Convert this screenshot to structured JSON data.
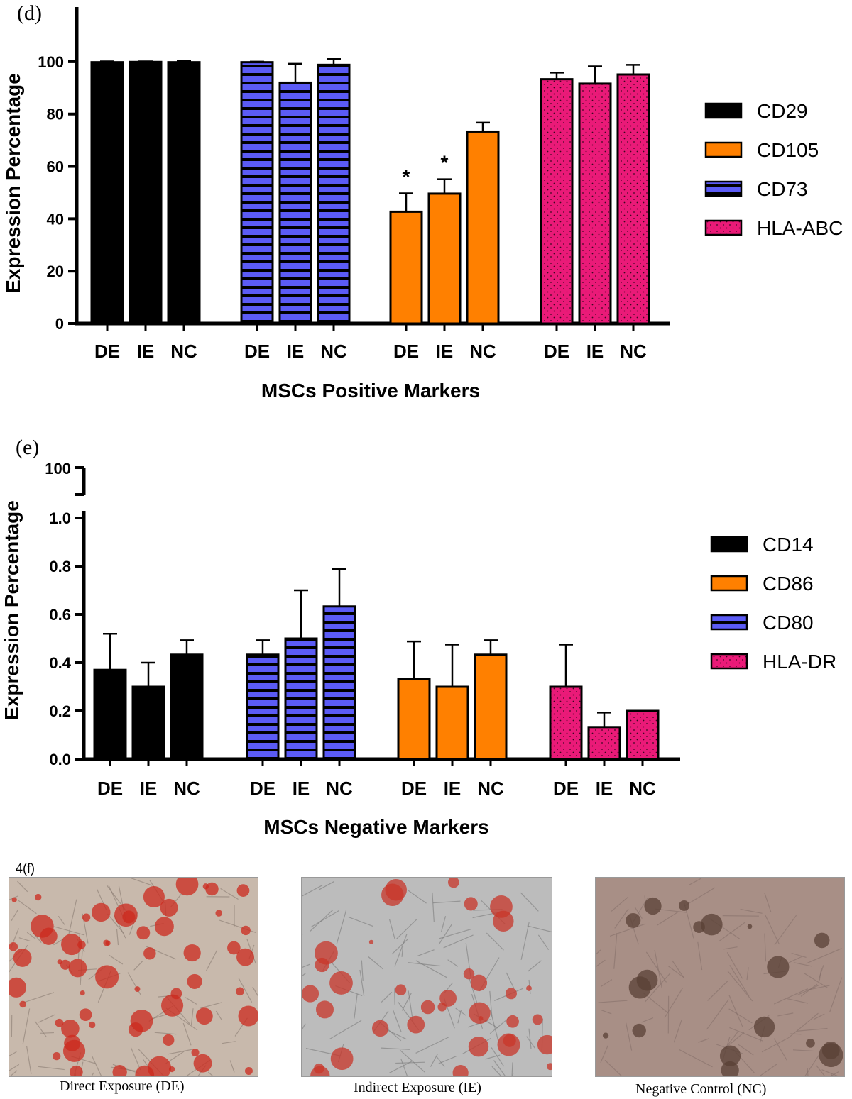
{
  "panels": {
    "d_label": "(d)",
    "e_label": "(e)",
    "f_label": "4(f)"
  },
  "chart_data": [
    {
      "type": "bar",
      "ylabel": "Expression Percentage",
      "xlabel": "MSCs Positive Markers",
      "ylim": [
        0,
        110
      ],
      "yticks": [
        0,
        20,
        40,
        60,
        80,
        100
      ],
      "legend_position": "right",
      "categories": [
        "DE",
        "IE",
        "NC"
      ],
      "groups": [
        {
          "name": "CD29",
          "color": "#000000",
          "pattern": "solid",
          "values": [
            99.8,
            99.9,
            99.8
          ],
          "errors": [
            0.3,
            0.2,
            0.5
          ]
        },
        {
          "name": "CD73",
          "color": "#5b5bf5",
          "pattern": "hstripe",
          "values": [
            99.8,
            92.0,
            98.8
          ],
          "errors": [
            0.2,
            7.2,
            2.2
          ]
        },
        {
          "name": "CD105",
          "color": "#ff8000",
          "pattern": "solid",
          "values": [
            42.7,
            49.6,
            73.3
          ],
          "errors": [
            7.0,
            5.5,
            3.4
          ],
          "significance": [
            "*",
            "*",
            ""
          ]
        },
        {
          "name": "HLA-ABC",
          "color": "#ea1a78",
          "pattern": "dots",
          "values": [
            93.3,
            91.6,
            95.1
          ],
          "errors": [
            2.5,
            6.6,
            3.7
          ]
        }
      ],
      "legend": [
        {
          "name": "CD29",
          "color": "#000000",
          "pattern": "solid"
        },
        {
          "name": "CD105",
          "color": "#ff8000",
          "pattern": "solid"
        },
        {
          "name": "CD73",
          "color": "#5b5bf5",
          "pattern": "hstripe"
        },
        {
          "name": "HLA-ABC",
          "color": "#ea1a78",
          "pattern": "dots"
        }
      ]
    },
    {
      "type": "bar",
      "ylabel": "Expression Percentage",
      "xlabel": "MSCs Negative Markers",
      "ylim": [
        0,
        1.0
      ],
      "yticks": [
        0.0,
        0.2,
        0.4,
        0.6,
        0.8,
        1.0
      ],
      "ytick_labels": [
        "0.0",
        "0.2",
        "0.4",
        "0.6",
        "0.8",
        "1.0"
      ],
      "axis_break_label": "100",
      "legend_position": "right",
      "categories": [
        "DE",
        "IE",
        "NC"
      ],
      "groups": [
        {
          "name": "CD14",
          "color": "#000000",
          "pattern": "solid",
          "values": [
            0.37,
            0.3,
            0.433
          ],
          "errors": [
            0.15,
            0.1,
            0.06
          ]
        },
        {
          "name": "CD80",
          "color": "#5b5bf5",
          "pattern": "hstripe",
          "values": [
            0.433,
            0.5,
            0.633
          ],
          "errors": [
            0.06,
            0.2,
            0.155
          ]
        },
        {
          "name": "CD86",
          "color": "#ff8000",
          "pattern": "solid",
          "values": [
            0.333,
            0.3,
            0.433
          ],
          "errors": [
            0.155,
            0.175,
            0.06
          ]
        },
        {
          "name": "HLA-DR",
          "color": "#ea1a78",
          "pattern": "dots",
          "values": [
            0.3,
            0.133,
            0.2
          ],
          "errors": [
            0.175,
            0.06,
            0.0
          ]
        }
      ],
      "legend": [
        {
          "name": "CD14",
          "color": "#000000",
          "pattern": "solid"
        },
        {
          "name": "CD86",
          "color": "#ff8000",
          "pattern": "solid"
        },
        {
          "name": "CD80",
          "color": "#5b5bf5",
          "pattern": "hstripe"
        },
        {
          "name": "HLA-DR",
          "color": "#ea1a78",
          "pattern": "dots"
        }
      ]
    }
  ],
  "photos": [
    {
      "caption": "Direct Exposure (DE)",
      "tone": "red-heavy"
    },
    {
      "caption": "Indirect Exposure (IE)",
      "tone": "red-moderate"
    },
    {
      "caption": "Negative Control (NC)",
      "tone": "brown"
    }
  ]
}
